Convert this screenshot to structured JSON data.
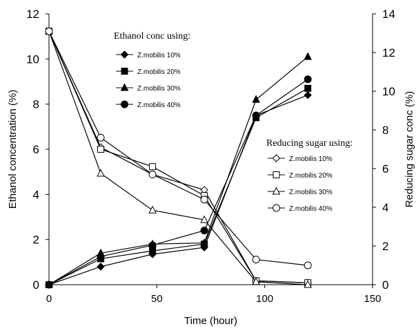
{
  "chart_data": {
    "type": "line",
    "xlabel": "Time (hour)",
    "ylabel": "Ethanol concentration (%)",
    "y2label": "Reducing sugar conc (%)",
    "xlim": [
      0,
      150
    ],
    "ylim": [
      0,
      12
    ],
    "y2lim": [
      0,
      14
    ],
    "xticks": [
      0,
      50,
      100,
      150
    ],
    "yticks": [
      0,
      2,
      4,
      6,
      8,
      10,
      12
    ],
    "y2ticks": [
      0,
      2,
      4,
      6,
      8,
      10,
      12,
      14
    ],
    "grid": false,
    "x": [
      0,
      24,
      48,
      72,
      96,
      120
    ],
    "legends": [
      {
        "title": "Ethanol conc using:",
        "placement": "top-center",
        "axis": "left"
      },
      {
        "title": "Reducing sugar using:",
        "placement": "center-right",
        "axis": "right"
      }
    ],
    "series": [
      {
        "name": "Z.mobilis 10%",
        "group": "ethanol",
        "axis": "left",
        "marker": "diamond",
        "filled": true,
        "values": [
          0,
          0.8,
          1.35,
          1.65,
          7.5,
          8.4
        ]
      },
      {
        "name": "Z.mobilis 20%",
        "group": "ethanol",
        "axis": "left",
        "marker": "square",
        "filled": true,
        "values": [
          0,
          1.15,
          1.5,
          1.8,
          7.4,
          8.7
        ]
      },
      {
        "name": "Z.mobilis 30%",
        "group": "ethanol",
        "axis": "left",
        "marker": "triangle",
        "filled": true,
        "values": [
          0,
          1.4,
          1.8,
          1.85,
          8.2,
          10.1
        ]
      },
      {
        "name": "Z.mobilis 40%",
        "group": "ethanol",
        "axis": "left",
        "marker": "circle",
        "filled": true,
        "values": [
          0,
          1.25,
          1.75,
          2.4,
          7.5,
          9.1
        ]
      },
      {
        "name": "Z.mobilis 10%",
        "group": "sugar",
        "axis": "right",
        "marker": "diamond",
        "filled": false,
        "values": [
          13.1,
          7.1,
          5.7,
          4.9,
          0.2,
          0.1
        ]
      },
      {
        "name": "Z.mobilis 20%",
        "group": "sugar",
        "axis": "right",
        "marker": "square",
        "filled": false,
        "values": [
          13.1,
          7.0,
          6.1,
          4.6,
          0.2,
          0.1
        ]
      },
      {
        "name": "Z.mobilis 30%",
        "group": "sugar",
        "axis": "right",
        "marker": "triangle",
        "filled": false,
        "values": [
          13.1,
          5.75,
          3.85,
          3.35,
          0.15,
          0.0
        ]
      },
      {
        "name": "Z.mobilis 40%",
        "group": "sugar",
        "axis": "right",
        "marker": "circle",
        "filled": false,
        "values": [
          13.1,
          7.6,
          5.7,
          4.4,
          1.3,
          1.0
        ]
      }
    ]
  }
}
